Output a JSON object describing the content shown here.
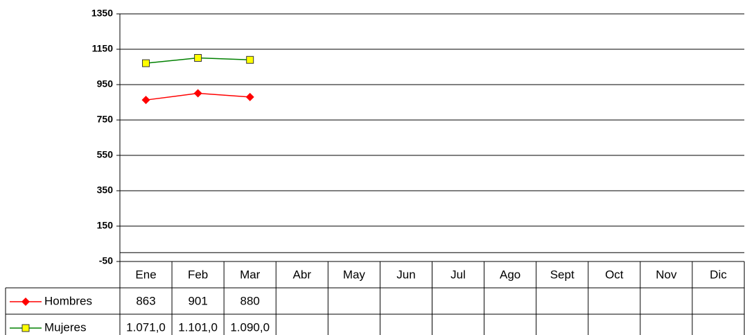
{
  "chart_data": {
    "type": "line",
    "categories": [
      "Ene",
      "Feb",
      "Mar",
      "Abr",
      "May",
      "Jun",
      "Jul",
      "Ago",
      "Sept",
      "Oct",
      "Nov",
      "Dic"
    ],
    "series": [
      {
        "name": "Hombres",
        "color": "#ff0000",
        "marker": "diamond",
        "values": [
          863,
          901,
          880,
          null,
          null,
          null,
          null,
          null,
          null,
          null,
          null,
          null
        ]
      },
      {
        "name": "Mujeres",
        "color": "#008000",
        "marker": "square",
        "marker_fill": "#ffff00",
        "values": [
          1071,
          1101,
          1090,
          null,
          null,
          null,
          null,
          null,
          null,
          null,
          null,
          null
        ],
        "value_labels": [
          "1.071,0",
          "1.101,0",
          "1.090,0",
          null,
          null,
          null,
          null,
          null,
          null,
          null,
          null,
          null
        ]
      }
    ],
    "ylim": [
      -50,
      1350
    ],
    "yticks": [
      -50,
      150,
      350,
      550,
      750,
      950,
      1150,
      1350
    ],
    "grid": true,
    "data_table": true
  }
}
